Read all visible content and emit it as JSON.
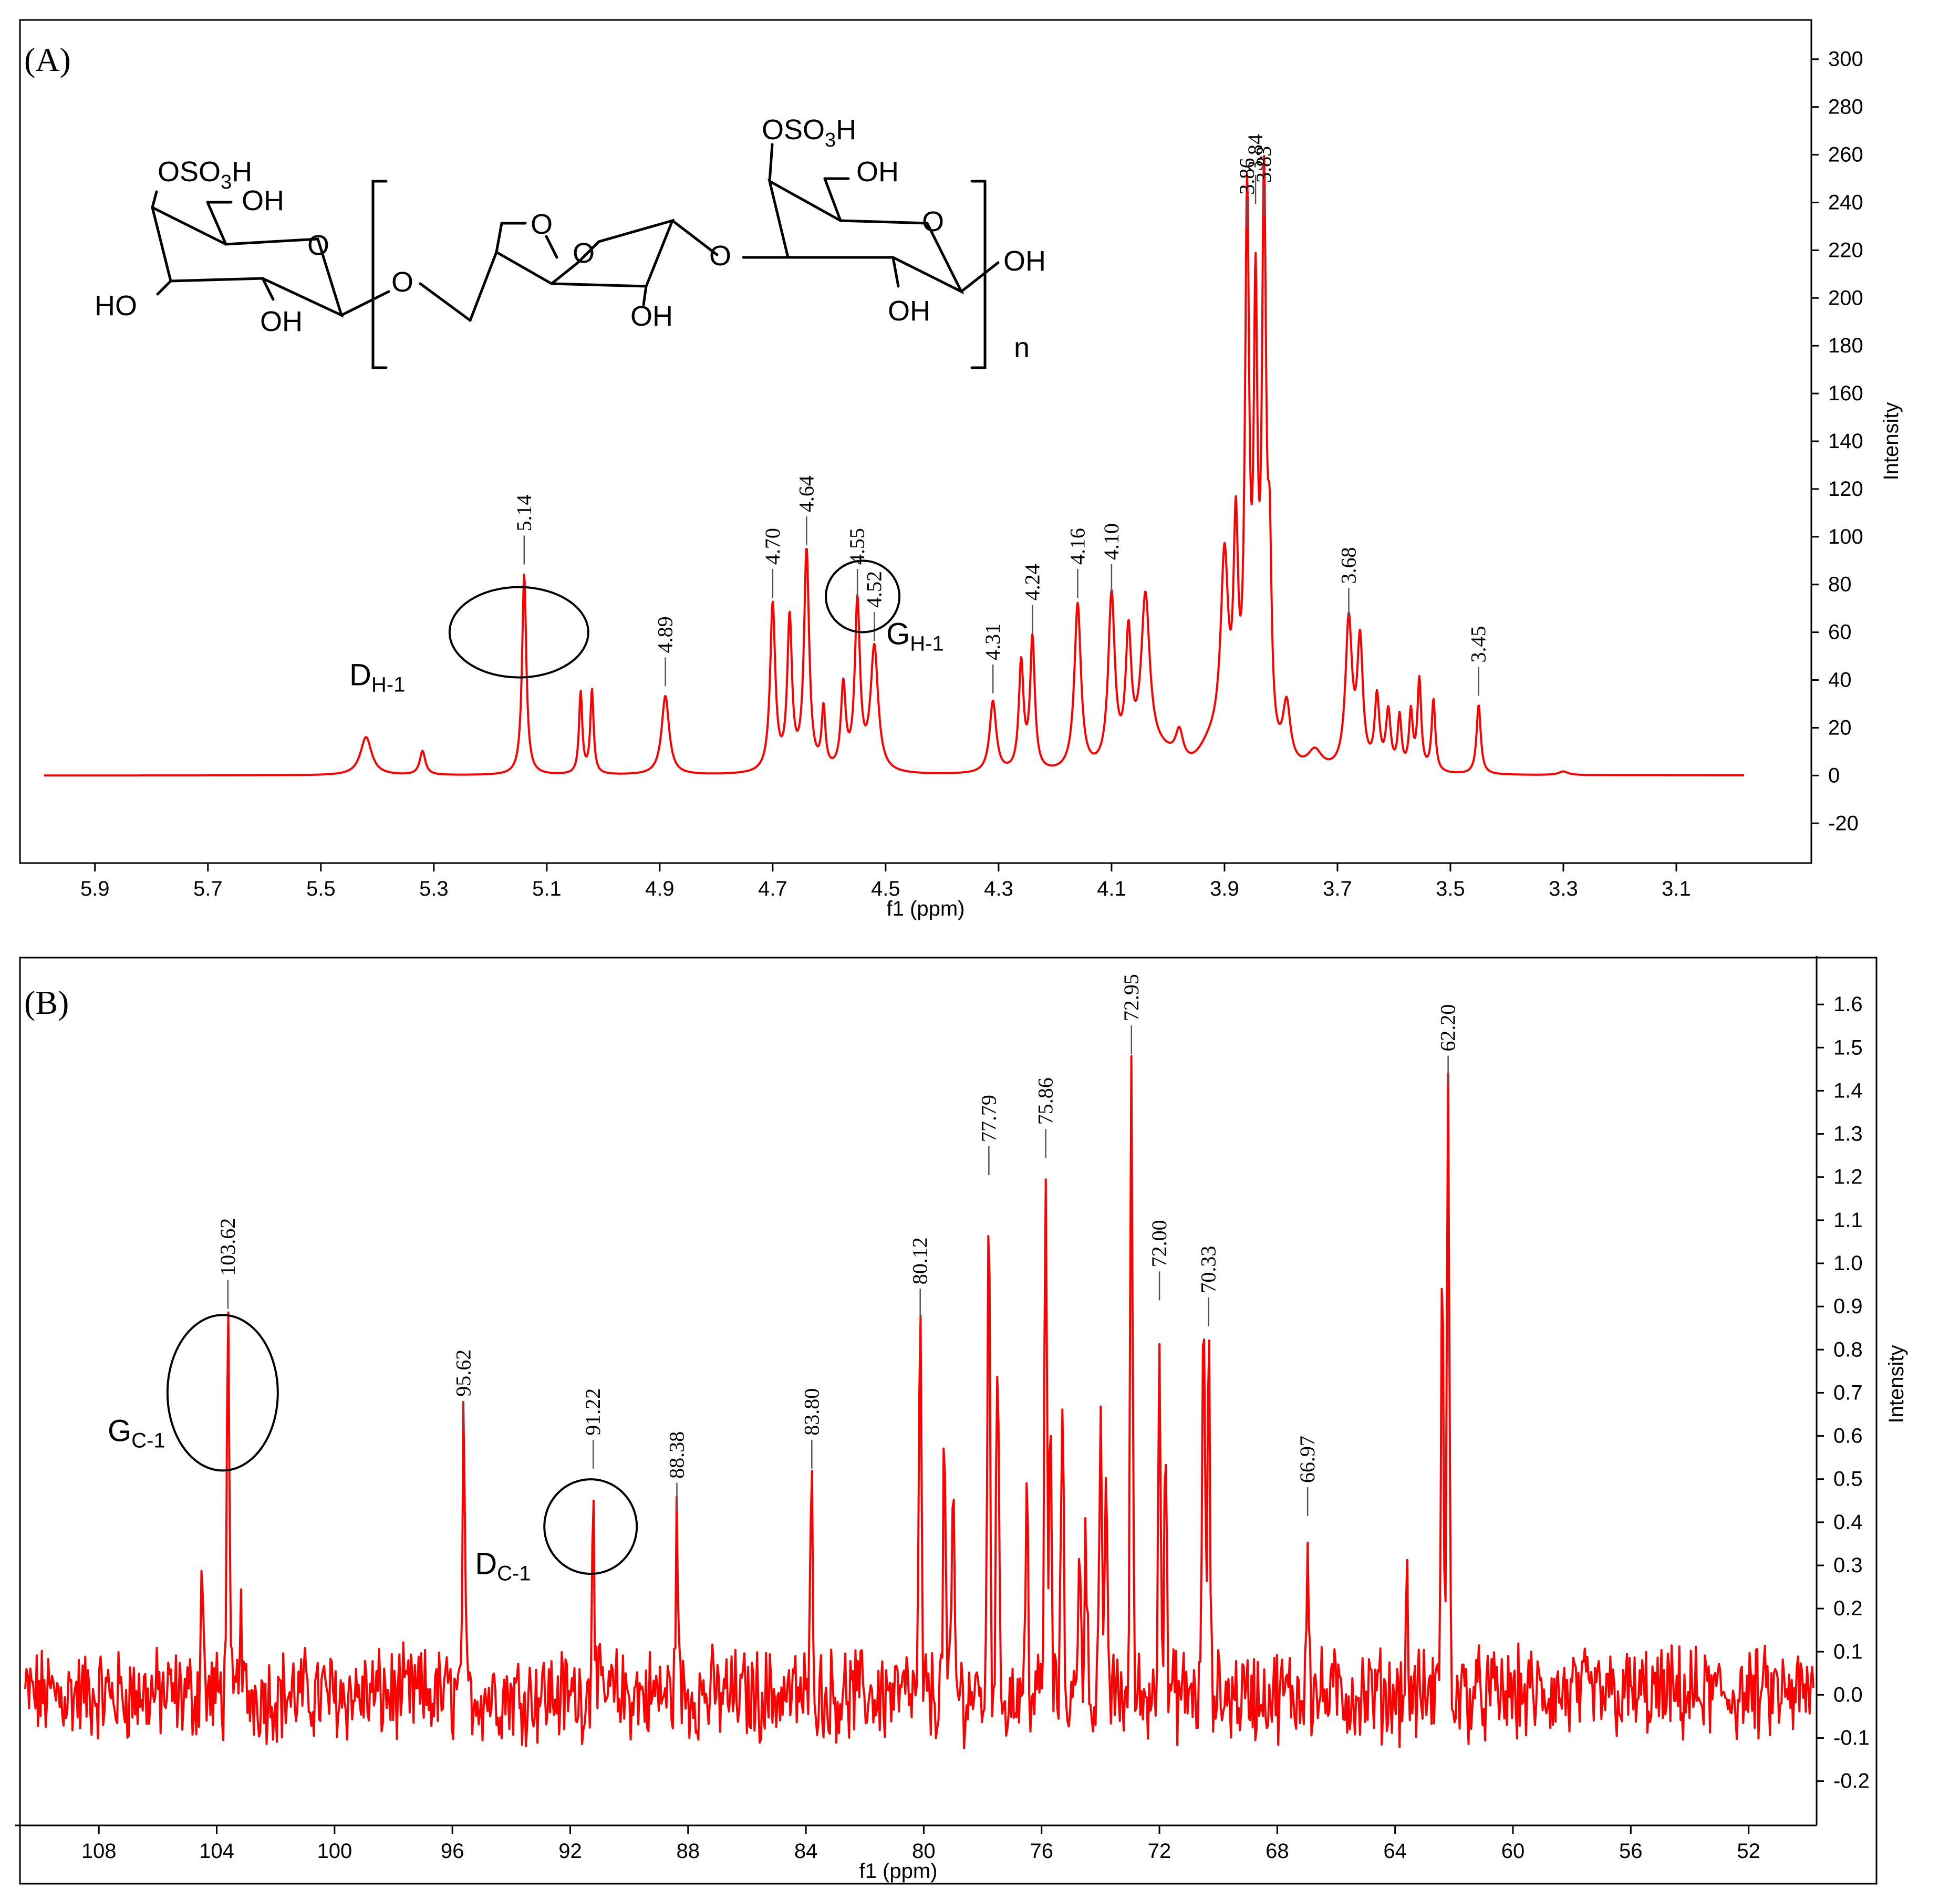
{
  "chart_data": [
    {
      "panel_label": "(A)",
      "type": "line",
      "title": "",
      "xlabel": "f1 (ppm)",
      "ylabel": "Intensity",
      "xlim": [
        5.99,
        2.98
      ],
      "ylim": [
        -25,
        305
      ],
      "x_ticks": [
        "5.9",
        "5.7",
        "5.5",
        "5.3",
        "5.1",
        "4.9",
        "4.7",
        "4.5",
        "4.3",
        "4.1",
        "3.9",
        "3.7",
        "3.5",
        "3.3",
        "3.1"
      ],
      "y_ticks": [
        "300",
        "280",
        "260",
        "240",
        "220",
        "200",
        "180",
        "160",
        "140",
        "120",
        "100",
        "80",
        "60",
        "40",
        "20",
        "0",
        "-20"
      ],
      "peaks": [
        {
          "x": 5.42,
          "y": 16,
          "w": 0.012
        },
        {
          "x": 5.32,
          "y": 10,
          "w": 0.006
        },
        {
          "x": 5.14,
          "y": 84,
          "w": 0.0045
        },
        {
          "x": 5.04,
          "y": 34,
          "w": 0.0035
        },
        {
          "x": 5.02,
          "y": 35,
          "w": 0.0035
        },
        {
          "x": 4.89,
          "y": 33,
          "w": 0.008
        },
        {
          "x": 4.7,
          "y": 70,
          "w": 0.0055
        },
        {
          "x": 4.67,
          "y": 63,
          "w": 0.005
        },
        {
          "x": 4.64,
          "y": 92,
          "w": 0.0055
        },
        {
          "x": 4.61,
          "y": 25,
          "w": 0.004
        },
        {
          "x": 4.575,
          "y": 35,
          "w": 0.005
        },
        {
          "x": 4.55,
          "y": 70,
          "w": 0.0055
        },
        {
          "x": 4.52,
          "y": 52,
          "w": 0.008
        },
        {
          "x": 4.31,
          "y": 30,
          "w": 0.007
        },
        {
          "x": 4.26,
          "y": 45,
          "w": 0.005
        },
        {
          "x": 4.24,
          "y": 55,
          "w": 0.005
        },
        {
          "x": 4.16,
          "y": 70,
          "w": 0.007
        },
        {
          "x": 4.1,
          "y": 72,
          "w": 0.007
        },
        {
          "x": 4.07,
          "y": 52,
          "w": 0.006
        },
        {
          "x": 4.04,
          "y": 66,
          "w": 0.009
        },
        {
          "x": 3.98,
          "y": 12,
          "w": 0.008
        },
        {
          "x": 3.9,
          "y": 80,
          "w": 0.008
        },
        {
          "x": 3.88,
          "y": 88,
          "w": 0.005
        },
        {
          "x": 3.86,
          "y": 225,
          "w": 0.0045
        },
        {
          "x": 3.845,
          "y": 175,
          "w": 0.004
        },
        {
          "x": 3.83,
          "y": 230,
          "w": 0.0045
        },
        {
          "x": 3.82,
          "y": 70,
          "w": 0.004
        },
        {
          "x": 3.79,
          "y": 25,
          "w": 0.008
        },
        {
          "x": 3.74,
          "y": 8,
          "w": 0.015
        },
        {
          "x": 3.68,
          "y": 62,
          "w": 0.007
        },
        {
          "x": 3.66,
          "y": 52,
          "w": 0.006
        },
        {
          "x": 3.63,
          "y": 30,
          "w": 0.005
        },
        {
          "x": 3.61,
          "y": 24,
          "w": 0.005
        },
        {
          "x": 3.59,
          "y": 22,
          "w": 0.004
        },
        {
          "x": 3.57,
          "y": 24,
          "w": 0.004
        },
        {
          "x": 3.555,
          "y": 38,
          "w": 0.004
        },
        {
          "x": 3.53,
          "y": 30,
          "w": 0.004
        },
        {
          "x": 3.45,
          "y": 29,
          "w": 0.0045
        },
        {
          "x": 3.3,
          "y": 1.5,
          "w": 0.01
        }
      ],
      "peak_labels": [
        {
          "text": "5.14",
          "x": 5.14,
          "y": 84
        },
        {
          "text": "4.89",
          "x": 4.89,
          "y": 33
        },
        {
          "text": "4.70",
          "x": 4.7,
          "y": 70
        },
        {
          "text": "4.64",
          "x": 4.64,
          "y": 92
        },
        {
          "text": "4.55",
          "x": 4.55,
          "y": 70
        },
        {
          "text": "4.52",
          "x": 4.52,
          "y": 52
        },
        {
          "text": "4.31",
          "x": 4.31,
          "y": 30
        },
        {
          "text": "4.24",
          "x": 4.24,
          "y": 55
        },
        {
          "text": "4.16",
          "x": 4.16,
          "y": 70
        },
        {
          "text": "4.10",
          "x": 4.1,
          "y": 72
        },
        {
          "text": "3.86",
          "x": 3.86,
          "y": 225
        },
        {
          "text": "3.84",
          "x": 3.845,
          "y": 235
        },
        {
          "text": "3.83",
          "x": 3.83,
          "y": 230
        },
        {
          "text": "3.68",
          "x": 3.68,
          "y": 62
        },
        {
          "text": "3.45",
          "x": 3.45,
          "y": 29
        }
      ],
      "annotations": [
        {
          "main": "D",
          "sub": "H-1",
          "circled_x": 5.14
        },
        {
          "main": "G",
          "sub": "H-1",
          "circled_x": 4.55
        }
      ],
      "structure": {
        "sugar_left": {
          "sulfate": "OSO",
          "sulfate_sub": "3",
          "sulfate_tail": "H",
          "oh6": "OH",
          "oh4": "HO",
          "oh2": "OH",
          "ring_o": "O"
        },
        "linker": "O",
        "repeat_mid": {
          "ring_o": "O",
          "bridge_o": "O",
          "oh2": "OH"
        },
        "linker2": "O",
        "sugar_right": {
          "sulfate": "OSO",
          "sulfate_sub": "3",
          "sulfate_tail": "H",
          "oh6": "OH",
          "ring_o": "O",
          "oh1": "OH",
          "oh2": "OH"
        },
        "repeat_n": "n"
      }
    },
    {
      "panel_label": "(B)",
      "type": "line",
      "title": "",
      "xlabel": "f1 (ppm)",
      "ylabel": "Intensity",
      "xlim": [
        110.5,
        49.8
      ],
      "ylim": [
        -0.26,
        1.7
      ],
      "x_ticks": [
        "108",
        "104",
        "100",
        "96",
        "92",
        "88",
        "84",
        "80",
        "76",
        "72",
        "68",
        "64",
        "60",
        "56",
        "52"
      ],
      "y_ticks": [
        "1.6",
        "1.5",
        "1.4",
        "1.3",
        "1.2",
        "1.1",
        "1.0",
        "0.9",
        "0.8",
        "0.7",
        "0.6",
        "0.5",
        "0.4",
        "0.3",
        "0.2",
        "0.1",
        "0.0",
        "-0.1",
        "-0.2"
      ],
      "noise_amplitude": 0.09,
      "peaks": [
        {
          "x": 104.5,
          "y": 0.3
        },
        {
          "x": 103.62,
          "y": 0.87
        },
        {
          "x": 103.2,
          "y": 0.2
        },
        {
          "x": 95.62,
          "y": 0.59
        },
        {
          "x": 91.22,
          "y": 0.5
        },
        {
          "x": 88.38,
          "y": 0.4
        },
        {
          "x": 83.8,
          "y": 0.5
        },
        {
          "x": 80.12,
          "y": 0.85
        },
        {
          "x": 79.3,
          "y": 0.6
        },
        {
          "x": 79.0,
          "y": 0.5
        },
        {
          "x": 77.79,
          "y": 1.18
        },
        {
          "x": 77.5,
          "y": 0.85
        },
        {
          "x": 76.5,
          "y": 0.48
        },
        {
          "x": 75.86,
          "y": 1.22
        },
        {
          "x": 75.7,
          "y": 0.6
        },
        {
          "x": 75.3,
          "y": 0.72
        },
        {
          "x": 74.7,
          "y": 0.38
        },
        {
          "x": 74.5,
          "y": 0.4
        },
        {
          "x": 74.0,
          "y": 0.63
        },
        {
          "x": 73.8,
          "y": 0.5
        },
        {
          "x": 72.95,
          "y": 1.46
        },
        {
          "x": 72.0,
          "y": 0.89
        },
        {
          "x": 71.8,
          "y": 0.6
        },
        {
          "x": 70.5,
          "y": 0.96
        },
        {
          "x": 70.33,
          "y": 0.83
        },
        {
          "x": 66.97,
          "y": 0.39
        },
        {
          "x": 63.6,
          "y": 0.23
        },
        {
          "x": 62.4,
          "y": 1.07
        },
        {
          "x": 62.2,
          "y": 1.39
        }
      ],
      "peak_labels": [
        {
          "text": "103.62",
          "x": 103.62,
          "y": 0.87
        },
        {
          "text": "95.62",
          "x": 95.62,
          "y": 0.59
        },
        {
          "text": "91.22",
          "x": 91.22,
          "y": 0.5
        },
        {
          "text": "88.38",
          "x": 88.38,
          "y": 0.4
        },
        {
          "text": "83.80",
          "x": 83.8,
          "y": 0.5
        },
        {
          "text": "80.12",
          "x": 80.12,
          "y": 0.85
        },
        {
          "text": "77.79",
          "x": 77.79,
          "y": 1.18
        },
        {
          "text": "75.86",
          "x": 75.86,
          "y": 1.22
        },
        {
          "text": "72.95",
          "x": 72.95,
          "y": 1.46
        },
        {
          "text": "72.00",
          "x": 72.0,
          "y": 0.89
        },
        {
          "text": "70.33",
          "x": 70.33,
          "y": 0.83
        },
        {
          "text": "66.97",
          "x": 66.97,
          "y": 0.39
        },
        {
          "text": "62.20",
          "x": 62.2,
          "y": 1.39
        }
      ],
      "annotations": [
        {
          "main": "G",
          "sub": "C-1",
          "circled_x": 103.62
        },
        {
          "main": "D",
          "sub": "C-1",
          "circled_x": 91.22
        }
      ]
    }
  ]
}
